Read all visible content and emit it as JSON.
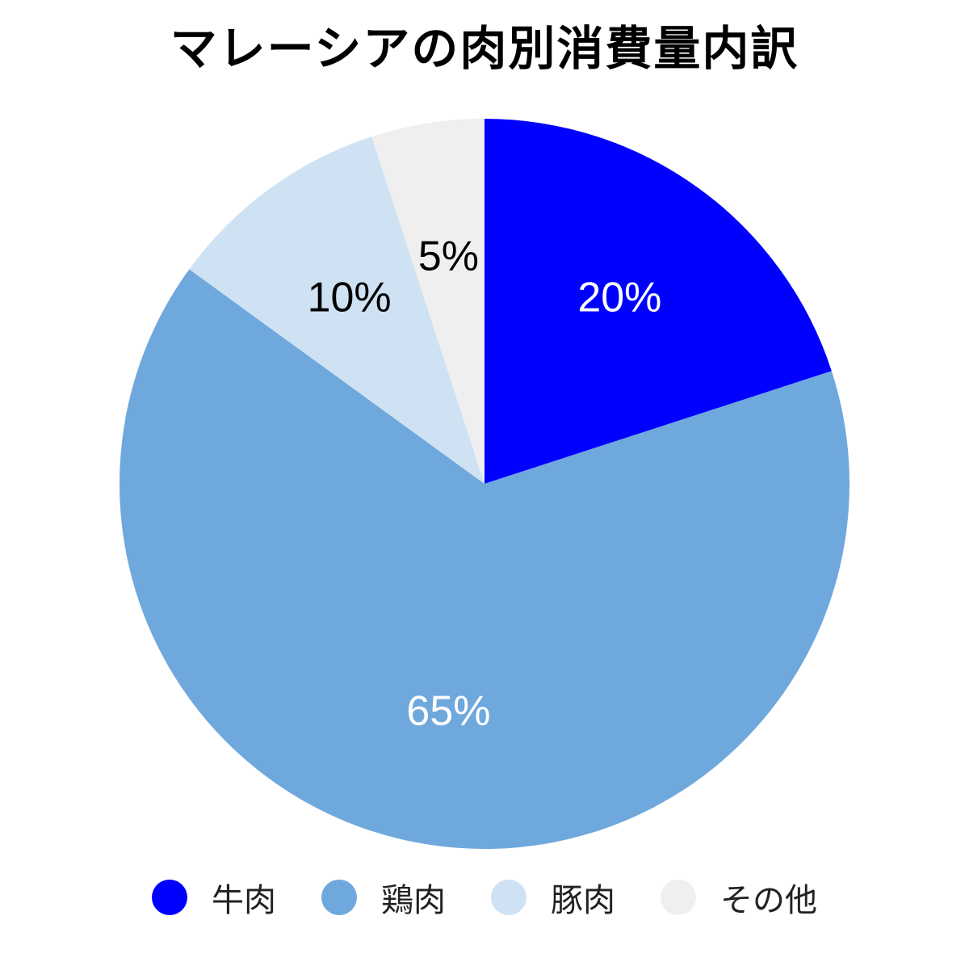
{
  "chart_data": {
    "type": "pie",
    "title": "マレーシアの肉別消費量内訳",
    "categories": [
      "牛肉",
      "鶏肉",
      "豚肉",
      "その他"
    ],
    "values": [
      20,
      65,
      10,
      5
    ],
    "value_labels": [
      "20%",
      "65%",
      "10%",
      "5%"
    ],
    "colors": [
      "#0000ff",
      "#6fa8dc",
      "#cfe2f3",
      "#efefef"
    ],
    "label_colors": [
      "#ffffff",
      "#ffffff",
      "#000000",
      "#000000"
    ],
    "start_angle": "12 o'clock",
    "direction": "clockwise",
    "legend_position": "bottom"
  }
}
